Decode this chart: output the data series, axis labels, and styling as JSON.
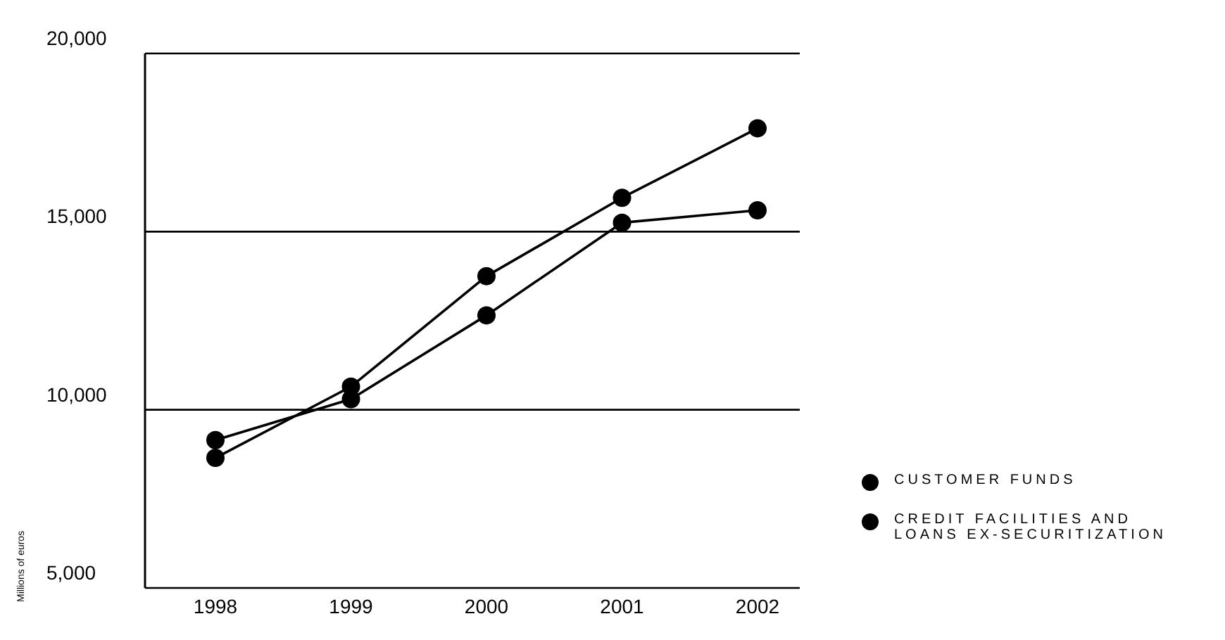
{
  "chart_data": {
    "type": "line",
    "ylabel": "Millions of euros",
    "categories": [
      "1998",
      "1999",
      "2000",
      "2001",
      "2002"
    ],
    "series": [
      {
        "name": "CUSTOMER FUNDS",
        "color": "#000000",
        "values": [
          9150,
          10300,
          12650,
          15250,
          15600
        ]
      },
      {
        "name": "CREDIT FACILITIES AND LOANS EX-SECURITIZATION",
        "color": "#000000",
        "values": [
          8650,
          10650,
          13750,
          15950,
          17900
        ]
      }
    ],
    "ylim": [
      5000,
      20000
    ],
    "yticks": [
      {
        "value": 5000,
        "label": "5,000"
      },
      {
        "value": 10000,
        "label": "10,000"
      },
      {
        "value": 15000,
        "label": "15,000"
      },
      {
        "value": 20000,
        "label": "20,000"
      }
    ],
    "grid": "y",
    "legend": "right",
    "marker": "circle",
    "line_style": "solid"
  }
}
